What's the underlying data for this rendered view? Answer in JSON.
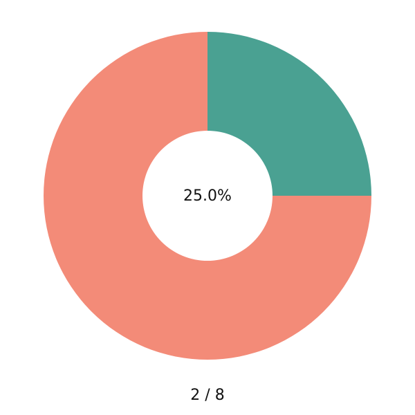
{
  "chart_data": {
    "type": "donut",
    "categories": [
      null,
      null
    ],
    "values": [
      25,
      75
    ],
    "colors": [
      "#4aa192",
      "#f38b78"
    ],
    "center_label": "25.0%",
    "caption": "2 / 8"
  }
}
